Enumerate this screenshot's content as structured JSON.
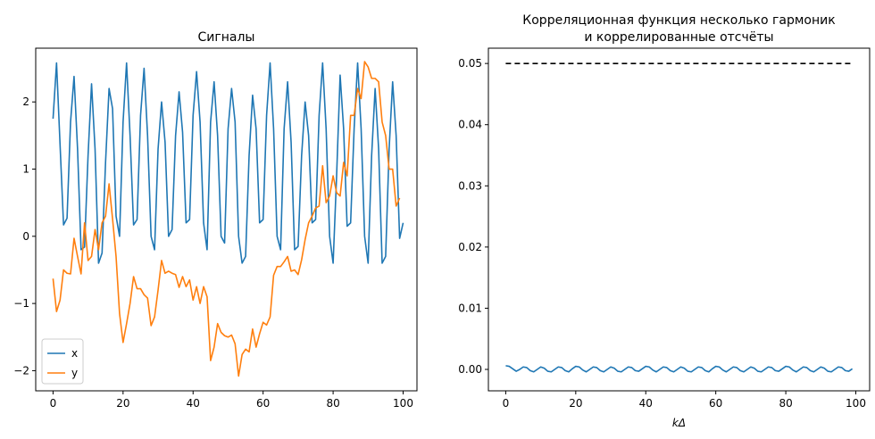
{
  "chart_data": [
    {
      "type": "line",
      "title": "Сигналы",
      "xlabel": "",
      "ylabel": "",
      "xlim": [
        -4.95,
        103.95
      ],
      "ylim": [
        -2.3,
        2.8
      ],
      "xticks": [
        0,
        20,
        40,
        60,
        80,
        100
      ],
      "yticks": [
        -2,
        -1,
        0,
        1,
        2
      ],
      "xtick_labels": [
        "0",
        "20",
        "40",
        "60",
        "80",
        "100"
      ],
      "ytick_labels": [
        "−2",
        "−1",
        "0",
        "1",
        "2"
      ],
      "legend": {
        "location": "lower-left",
        "entries": [
          "x",
          "y"
        ]
      },
      "series": [
        {
          "name": "x",
          "color": "#1f77b4",
          "values": [
            1.75,
            2.58,
            1.37,
            0.17,
            0.27,
            1.7,
            2.38,
            1.3,
            -0.2,
            -0.16,
            1.2,
            2.27,
            1.3,
            -0.4,
            -0.25,
            1.1,
            2.2,
            1.9,
            0.3,
            0.0,
            1.7,
            2.58,
            1.5,
            0.17,
            0.25,
            1.8,
            2.5,
            1.5,
            0.0,
            -0.2,
            1.3,
            2.0,
            1.4,
            0.0,
            0.1,
            1.5,
            2.15,
            1.55,
            0.2,
            0.25,
            1.8,
            2.45,
            1.7,
            0.2,
            -0.2,
            1.7,
            2.3,
            1.5,
            0.0,
            -0.1,
            1.6,
            2.2,
            1.7,
            0.0,
            -0.4,
            -0.3,
            1.2,
            2.1,
            1.6,
            0.2,
            0.25,
            1.8,
            2.58,
            1.6,
            0.0,
            -0.2,
            1.6,
            2.3,
            1.4,
            -0.2,
            -0.15,
            1.2,
            2.0,
            1.5,
            0.2,
            0.25,
            1.8,
            2.58,
            1.6,
            0.0,
            -0.4,
            0.9,
            2.4,
            1.6,
            0.15,
            0.2,
            1.6,
            2.58,
            1.6,
            0.0,
            -0.4,
            1.2,
            2.2,
            1.3,
            -0.4,
            -0.3,
            1.3,
            2.3,
            1.5,
            -0.03,
            0.2
          ]
        },
        {
          "name": "y",
          "color": "#ff7f0e",
          "values": [
            -0.63,
            -1.12,
            -0.95,
            -0.5,
            -0.55,
            -0.56,
            -0.03,
            -0.3,
            -0.56,
            0.2,
            -0.36,
            -0.3,
            0.1,
            -0.2,
            0.2,
            0.3,
            0.78,
            0.26,
            -0.3,
            -1.15,
            -1.58,
            -1.3,
            -1.0,
            -0.6,
            -0.78,
            -0.78,
            -0.87,
            -0.92,
            -1.33,
            -1.2,
            -0.8,
            -0.36,
            -0.55,
            -0.52,
            -0.55,
            -0.57,
            -0.76,
            -0.6,
            -0.75,
            -0.65,
            -0.95,
            -0.75,
            -1.0,
            -0.75,
            -0.9,
            -1.85,
            -1.65,
            -1.3,
            -1.43,
            -1.48,
            -1.5,
            -1.47,
            -1.6,
            -2.08,
            -1.76,
            -1.68,
            -1.72,
            -1.38,
            -1.65,
            -1.45,
            -1.28,
            -1.32,
            -1.2,
            -0.58,
            -0.45,
            -0.45,
            -0.38,
            -0.3,
            -0.52,
            -0.5,
            -0.57,
            -0.35,
            -0.05,
            0.2,
            0.3,
            0.42,
            0.45,
            1.05,
            0.5,
            0.6,
            0.9,
            0.65,
            0.6,
            1.1,
            0.9,
            1.8,
            1.8,
            2.2,
            2.05,
            2.6,
            2.52,
            2.35,
            2.35,
            2.3,
            1.7,
            1.5,
            1.0,
            1.0,
            0.45,
            0.57
          ]
        }
      ]
    },
    {
      "type": "line",
      "title": "Корреляционная функция несколько гармоник",
      "subtitle": "и коррелированные отсчёты",
      "xlabel": "kΔ",
      "ylabel": "",
      "xlim": [
        -4.95,
        103.95
      ],
      "ylim": [
        -0.0035,
        0.0525
      ],
      "xticks": [
        0,
        20,
        40,
        60,
        80,
        100
      ],
      "yticks": [
        0.0,
        0.01,
        0.02,
        0.03,
        0.04,
        0.05
      ],
      "xtick_labels": [
        "0",
        "20",
        "40",
        "60",
        "80",
        "100"
      ],
      "ytick_labels": [
        "0.00",
        "0.01",
        "0.02",
        "0.03",
        "0.04",
        "0.05"
      ],
      "series": [
        {
          "color": "#1f77b4",
          "values": [
            0.0006,
            0.0005,
            0.0001,
            -0.0003,
            0.0,
            0.0004,
            0.0003,
            -0.0002,
            -0.0004,
            0.0,
            0.0004,
            0.0002,
            -0.0003,
            -0.0004,
            0.0,
            0.0004,
            0.0003,
            -0.0002,
            -0.0004,
            0.0001,
            0.0005,
            0.0004,
            -0.0001,
            -0.0004,
            0.0,
            0.0004,
            0.0003,
            -0.0002,
            -0.0004,
            0.0,
            0.0004,
            0.0002,
            -0.0003,
            -0.0004,
            0.0,
            0.0004,
            0.0003,
            -0.0002,
            -0.0003,
            0.0001,
            0.0005,
            0.0004,
            -0.0001,
            -0.0004,
            0.0,
            0.0004,
            0.0003,
            -0.0002,
            -0.0004,
            0.0,
            0.0004,
            0.0002,
            -0.0003,
            -0.0004,
            0.0,
            0.0004,
            0.0003,
            -0.0002,
            -0.0004,
            0.0001,
            0.0005,
            0.0004,
            -0.0001,
            -0.0004,
            0.0,
            0.0004,
            0.0003,
            -0.0002,
            -0.0004,
            0.0,
            0.0004,
            0.0002,
            -0.0003,
            -0.0004,
            0.0,
            0.0004,
            0.0003,
            -0.0002,
            -0.0003,
            0.0001,
            0.0005,
            0.0004,
            -0.0001,
            -0.0004,
            0.0,
            0.0004,
            0.0003,
            -0.0002,
            -0.0004,
            0.0,
            0.0004,
            0.0002,
            -0.0003,
            -0.0004,
            0.0,
            0.0004,
            0.0003,
            -0.0002,
            -0.0003,
            0.0001
          ]
        },
        {
          "style": "dashed",
          "color": "#000000",
          "x": [
            0,
            99
          ],
          "values": [
            0.05,
            0.05
          ]
        }
      ]
    }
  ]
}
